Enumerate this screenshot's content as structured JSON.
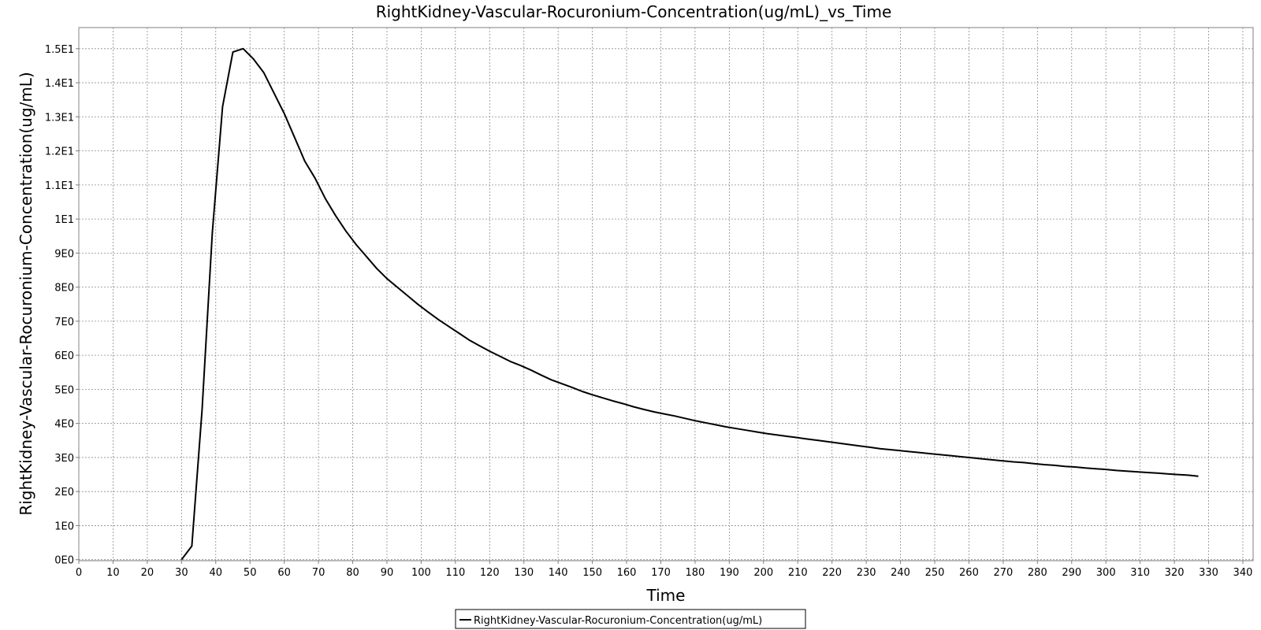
{
  "chart_data": {
    "type": "line",
    "title": "RightKidney-Vascular-Rocuronium-Concentration(ug/mL)_vs_Time",
    "xlabel": "Time",
    "ylabel": "RightKidney-Vascular-Rocuronium-Concentration(ug/mL)",
    "xlim": [
      0,
      343
    ],
    "ylim": [
      -0.03,
      15.62
    ],
    "x_ticks": [
      0,
      10,
      20,
      30,
      40,
      50,
      60,
      70,
      80,
      90,
      100,
      110,
      120,
      130,
      140,
      150,
      160,
      170,
      180,
      190,
      200,
      210,
      220,
      230,
      240,
      250,
      260,
      270,
      280,
      290,
      300,
      310,
      320,
      330,
      340
    ],
    "y_ticks": [
      {
        "value": 0,
        "label": "0E0"
      },
      {
        "value": 1,
        "label": "1E0"
      },
      {
        "value": 2,
        "label": "2E0"
      },
      {
        "value": 3,
        "label": "3E0"
      },
      {
        "value": 4,
        "label": "4E0"
      },
      {
        "value": 5,
        "label": "5E0"
      },
      {
        "value": 6,
        "label": "6E0"
      },
      {
        "value": 7,
        "label": "7E0"
      },
      {
        "value": 8,
        "label": "8E0"
      },
      {
        "value": 9,
        "label": "9E0"
      },
      {
        "value": 10,
        "label": "1E1"
      },
      {
        "value": 11,
        "label": "1.1E1"
      },
      {
        "value": 12,
        "label": "1.2E1"
      },
      {
        "value": 13,
        "label": "1.3E1"
      },
      {
        "value": 14,
        "label": "1.4E1"
      },
      {
        "value": 15,
        "label": "1.5E1"
      }
    ],
    "grid": true,
    "legend_position": "bottom-center",
    "series": [
      {
        "name": "RightKidney-Vascular-Rocuronium-Concentration(ug/mL)",
        "color": "#000000",
        "x": [
          30,
          33,
          36,
          39,
          42,
          45,
          48,
          51,
          54,
          57,
          60,
          63,
          66,
          69,
          72,
          75,
          78,
          81,
          84,
          87,
          90,
          93,
          96,
          99,
          102,
          105,
          108,
          111,
          114,
          117,
          120,
          123,
          126,
          129,
          132,
          135,
          138,
          141,
          144,
          147,
          150,
          153,
          156,
          159,
          162,
          165,
          168,
          171,
          174,
          177,
          180,
          183,
          186,
          189,
          192,
          195,
          198,
          201,
          204,
          207,
          210,
          213,
          216,
          219,
          222,
          225,
          228,
          231,
          234,
          237,
          240,
          243,
          246,
          249,
          252,
          255,
          258,
          261,
          264,
          267,
          270,
          273,
          276,
          279,
          282,
          285,
          288,
          291,
          294,
          297,
          300,
          303,
          306,
          309,
          312,
          315,
          318,
          321,
          324,
          327
        ],
        "y": [
          0,
          0.4,
          4.4,
          9.6,
          13.3,
          14.9,
          15.0,
          14.7,
          14.3,
          13.7,
          13.1,
          12.4,
          11.7,
          11.2,
          10.6,
          10.1,
          9.65,
          9.25,
          8.9,
          8.55,
          8.25,
          8.0,
          7.75,
          7.5,
          7.27,
          7.05,
          6.85,
          6.65,
          6.45,
          6.28,
          6.12,
          5.97,
          5.82,
          5.7,
          5.57,
          5.42,
          5.28,
          5.17,
          5.06,
          4.94,
          4.84,
          4.75,
          4.66,
          4.58,
          4.49,
          4.41,
          4.34,
          4.28,
          4.22,
          4.15,
          4.08,
          4.02,
          3.96,
          3.9,
          3.85,
          3.8,
          3.75,
          3.7,
          3.66,
          3.62,
          3.58,
          3.54,
          3.5,
          3.46,
          3.42,
          3.38,
          3.34,
          3.3,
          3.26,
          3.23,
          3.2,
          3.17,
          3.14,
          3.11,
          3.08,
          3.05,
          3.02,
          2.99,
          2.96,
          2.93,
          2.9,
          2.87,
          2.85,
          2.82,
          2.79,
          2.77,
          2.74,
          2.72,
          2.69,
          2.67,
          2.65,
          2.62,
          2.6,
          2.58,
          2.56,
          2.54,
          2.52,
          2.5,
          2.48,
          2.45
        ]
      }
    ]
  }
}
